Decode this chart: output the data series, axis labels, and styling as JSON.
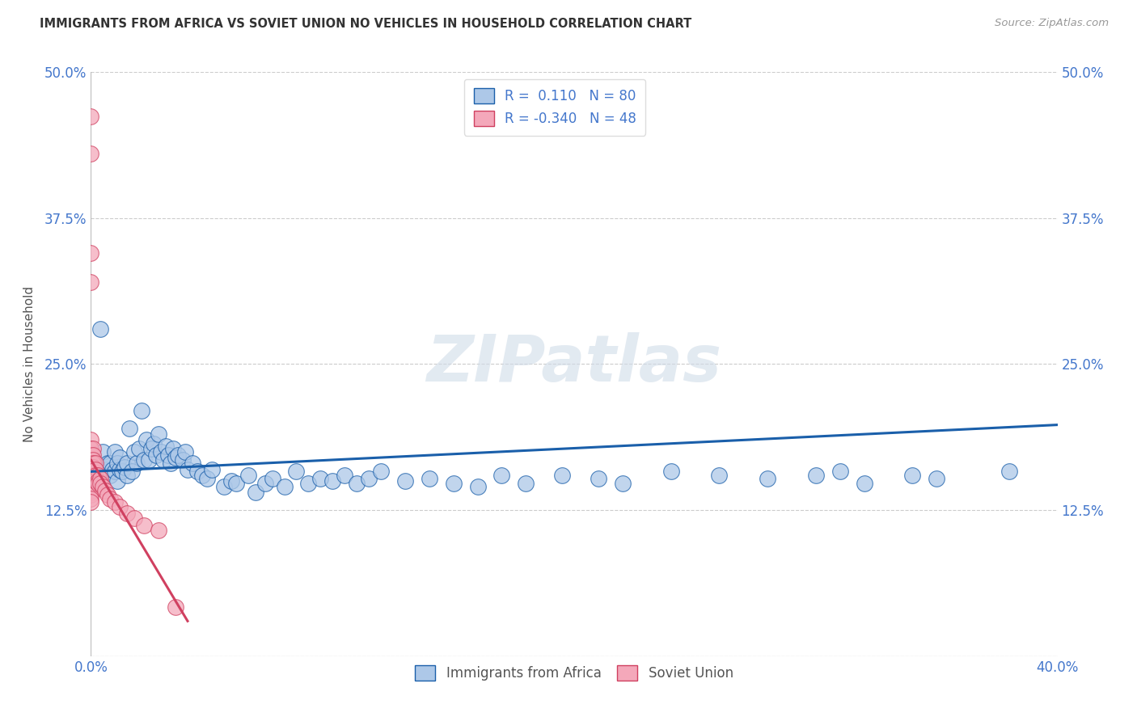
{
  "title": "IMMIGRANTS FROM AFRICA VS SOVIET UNION NO VEHICLES IN HOUSEHOLD CORRELATION CHART",
  "source": "Source: ZipAtlas.com",
  "ylabel": "No Vehicles in Household",
  "xlim": [
    0.0,
    0.4
  ],
  "ylim": [
    0.0,
    0.5
  ],
  "xticks": [
    0.0,
    0.1,
    0.2,
    0.3,
    0.4
  ],
  "xticklabels": [
    "0.0%",
    "",
    "",
    "",
    "40.0%"
  ],
  "yticks": [
    0.0,
    0.125,
    0.25,
    0.375,
    0.5
  ],
  "yticklabels": [
    "",
    "12.5%",
    "25.0%",
    "37.5%",
    "50.0%"
  ],
  "africa_R": 0.11,
  "africa_N": 80,
  "soviet_R": -0.34,
  "soviet_N": 48,
  "africa_color": "#adc8e8",
  "soviet_color": "#f4a8ba",
  "africa_line_color": "#1a5faa",
  "soviet_line_color": "#d04060",
  "background_color": "#ffffff",
  "grid_color": "#cccccc",
  "title_color": "#333333",
  "axis_color": "#4477cc",
  "legend_label_africa": "Immigrants from Africa",
  "legend_label_soviet": "Soviet Union",
  "watermark": "ZIPatlas",
  "africa_x": [
    0.004,
    0.005,
    0.006,
    0.007,
    0.008,
    0.008,
    0.009,
    0.01,
    0.01,
    0.011,
    0.011,
    0.012,
    0.012,
    0.013,
    0.014,
    0.015,
    0.015,
    0.016,
    0.017,
    0.018,
    0.019,
    0.02,
    0.021,
    0.022,
    0.023,
    0.024,
    0.025,
    0.026,
    0.027,
    0.028,
    0.029,
    0.03,
    0.031,
    0.032,
    0.033,
    0.034,
    0.035,
    0.036,
    0.038,
    0.039,
    0.04,
    0.042,
    0.044,
    0.046,
    0.048,
    0.05,
    0.055,
    0.058,
    0.06,
    0.065,
    0.068,
    0.072,
    0.075,
    0.08,
    0.085,
    0.09,
    0.095,
    0.1,
    0.105,
    0.11,
    0.115,
    0.12,
    0.13,
    0.14,
    0.15,
    0.16,
    0.17,
    0.18,
    0.195,
    0.21,
    0.22,
    0.24,
    0.26,
    0.28,
    0.3,
    0.31,
    0.32,
    0.34,
    0.35,
    0.38
  ],
  "africa_y": [
    0.28,
    0.175,
    0.16,
    0.165,
    0.165,
    0.155,
    0.16,
    0.175,
    0.158,
    0.165,
    0.15,
    0.16,
    0.17,
    0.158,
    0.162,
    0.155,
    0.165,
    0.195,
    0.158,
    0.175,
    0.165,
    0.178,
    0.21,
    0.168,
    0.185,
    0.168,
    0.178,
    0.182,
    0.172,
    0.19,
    0.175,
    0.168,
    0.18,
    0.172,
    0.165,
    0.178,
    0.17,
    0.172,
    0.168,
    0.175,
    0.16,
    0.165,
    0.158,
    0.155,
    0.152,
    0.16,
    0.145,
    0.15,
    0.148,
    0.155,
    0.14,
    0.148,
    0.152,
    0.145,
    0.158,
    0.148,
    0.152,
    0.15,
    0.155,
    0.148,
    0.152,
    0.158,
    0.15,
    0.152,
    0.148,
    0.145,
    0.155,
    0.148,
    0.155,
    0.152,
    0.148,
    0.158,
    0.155,
    0.152,
    0.155,
    0.158,
    0.148,
    0.155,
    0.152,
    0.158
  ],
  "soviet_x": [
    0.0,
    0.0,
    0.0,
    0.0,
    0.0,
    0.0,
    0.0,
    0.0,
    0.0,
    0.0,
    0.0,
    0.0,
    0.0,
    0.0,
    0.0,
    0.0,
    0.0,
    0.0,
    0.0,
    0.0,
    0.001,
    0.001,
    0.001,
    0.001,
    0.001,
    0.001,
    0.001,
    0.001,
    0.002,
    0.002,
    0.002,
    0.002,
    0.003,
    0.003,
    0.003,
    0.004,
    0.004,
    0.005,
    0.006,
    0.007,
    0.008,
    0.01,
    0.012,
    0.015,
    0.018,
    0.022,
    0.028,
    0.035
  ],
  "soviet_y": [
    0.462,
    0.43,
    0.345,
    0.32,
    0.185,
    0.178,
    0.172,
    0.168,
    0.165,
    0.162,
    0.158,
    0.155,
    0.152,
    0.148,
    0.145,
    0.142,
    0.14,
    0.138,
    0.135,
    0.132,
    0.178,
    0.172,
    0.168,
    0.165,
    0.162,
    0.158,
    0.155,
    0.152,
    0.165,
    0.16,
    0.155,
    0.15,
    0.155,
    0.15,
    0.148,
    0.152,
    0.148,
    0.145,
    0.142,
    0.138,
    0.135,
    0.132,
    0.128,
    0.122,
    0.118,
    0.112,
    0.108,
    0.042
  ],
  "africa_trend_x0": 0.0,
  "africa_trend_x1": 0.4,
  "africa_trend_y0": 0.158,
  "africa_trend_y1": 0.198,
  "soviet_trend_x0": 0.0,
  "soviet_trend_x1": 0.04,
  "soviet_trend_y0": 0.168,
  "soviet_trend_y1": 0.03
}
